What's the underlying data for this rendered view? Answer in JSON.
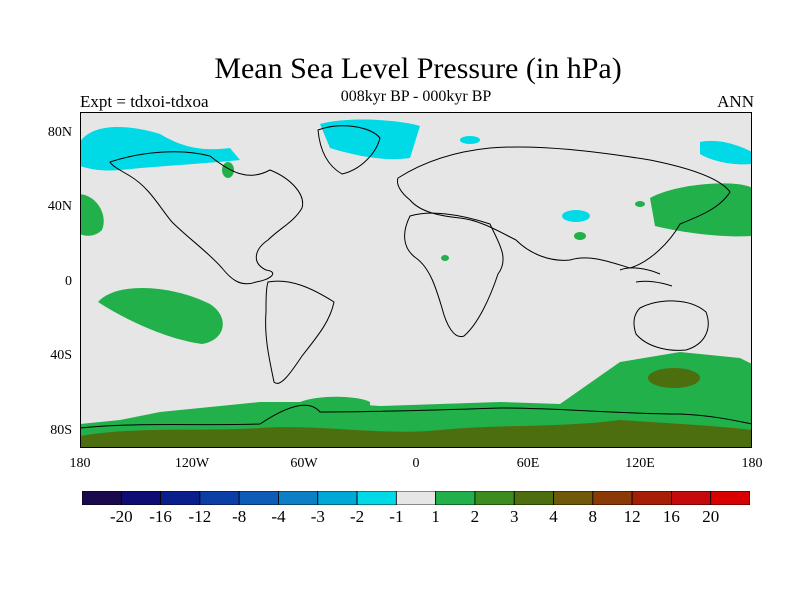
{
  "title": "Mean Sea Level Pressure (in hPa)",
  "experiment_label": "Expt = tdxoi-tdxoa",
  "period_label": "008kyr BP - 000kyr BP",
  "season_label": "ANN",
  "axes": {
    "lat_ticks": [
      "80N",
      "40N",
      "0",
      "40S",
      "80S"
    ],
    "lon_ticks": [
      "180",
      "120W",
      "60W",
      "0",
      "60E",
      "120E",
      "180"
    ]
  },
  "colorbar": {
    "labels": [
      "-20",
      "-16",
      "-12",
      "-8",
      "-4",
      "-3",
      "-2",
      "-1",
      "1",
      "2",
      "3",
      "4",
      "8",
      "12",
      "16",
      "20"
    ],
    "colors": [
      "#1a0a4d",
      "#0d0d73",
      "#0a1f8c",
      "#0b3ea6",
      "#0d5cb8",
      "#0d7fc4",
      "#00a8d6",
      "#00d9e6",
      "#e6e6e6",
      "#22b04a",
      "#3c8c1e",
      "#4d6e0f",
      "#6e5a0a",
      "#8c3a05",
      "#a61e05",
      "#c40a0a",
      "#d90000"
    ]
  },
  "colors": {
    "land_outline": "#000000",
    "neutral": "#e6e6e6",
    "cyan": "#00d9e6",
    "green": "#22b04a",
    "dark_green": "#4d6e0f"
  }
}
